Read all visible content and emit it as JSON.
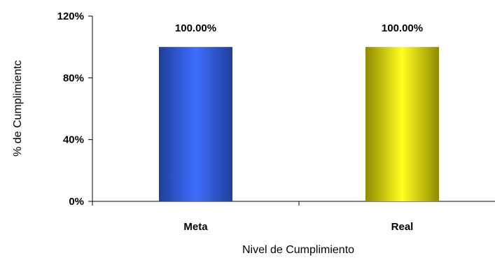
{
  "chart_data": {
    "type": "bar",
    "title": "",
    "categories": [
      "Meta",
      "Real"
    ],
    "values": [
      100,
      100
    ],
    "value_labels": [
      "100.00%",
      "100.00%"
    ],
    "bar_colors": [
      {
        "edge": "#1f3f9a",
        "center": "#3f6eff"
      },
      {
        "edge": "#8f8a00",
        "center": "#ffff20"
      }
    ],
    "xlabel": "Nivel de Cumplimiento",
    "ylabel": "% de Cumplimientc",
    "ylim": [
      0,
      120
    ],
    "y_ticks": [
      0,
      40,
      80,
      120
    ],
    "y_tick_labels": [
      "0%",
      "40%",
      "80%",
      "120%"
    ],
    "grid": false,
    "legend": "none"
  }
}
